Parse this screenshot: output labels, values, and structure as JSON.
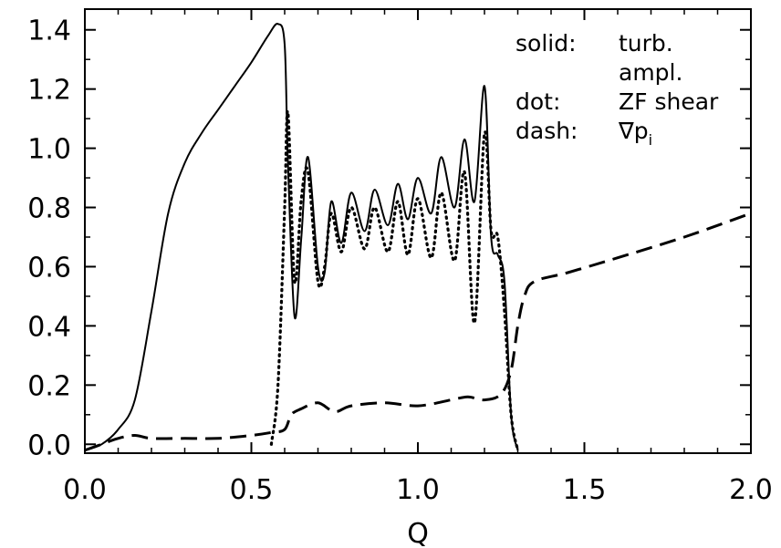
{
  "chart_data": {
    "type": "line",
    "xlabel": "Q",
    "ylabel": "",
    "xlim": [
      0.0,
      2.0
    ],
    "ylim": [
      -0.03,
      1.47
    ],
    "x_ticks": [
      "0.0",
      "0.5",
      "1.0",
      "1.5",
      "2.0"
    ],
    "y_ticks": [
      "0.0",
      "0.2",
      "0.4",
      "0.6",
      "0.8",
      "1.0",
      "1.2",
      "1.4"
    ],
    "legend": {
      "placement": "top-right",
      "entries": [
        {
          "key": "solid:",
          "text": "turb."
        },
        {
          "key": "",
          "text": "ampl."
        },
        {
          "key": "dot:",
          "text": "ZF shear"
        },
        {
          "key": "dash:",
          "text": "∇p",
          "subscript": "i"
        }
      ]
    },
    "series": [
      {
        "style": "solid",
        "x": [
          0.0,
          0.05,
          0.1,
          0.15,
          0.2,
          0.25,
          0.3,
          0.35,
          0.4,
          0.45,
          0.5,
          0.55,
          0.58,
          0.6,
          0.61,
          0.63,
          0.65,
          0.67,
          0.7,
          0.72,
          0.74,
          0.77,
          0.8,
          0.84,
          0.87,
          0.91,
          0.94,
          0.97,
          1.0,
          1.04,
          1.07,
          1.11,
          1.14,
          1.17,
          1.2,
          1.22,
          1.24,
          1.26,
          1.28,
          1.3
        ],
        "y": [
          -0.02,
          0.0,
          0.05,
          0.15,
          0.45,
          0.78,
          0.95,
          1.05,
          1.13,
          1.21,
          1.29,
          1.38,
          1.42,
          1.35,
          0.95,
          0.43,
          0.7,
          0.97,
          0.6,
          0.58,
          0.82,
          0.68,
          0.85,
          0.72,
          0.86,
          0.74,
          0.88,
          0.76,
          0.9,
          0.78,
          0.97,
          0.8,
          1.03,
          0.82,
          1.21,
          0.7,
          0.64,
          0.55,
          0.1,
          -0.02
        ]
      },
      {
        "style": "dot",
        "x": [
          0.56,
          0.58,
          0.6,
          0.61,
          0.63,
          0.65,
          0.67,
          0.7,
          0.72,
          0.74,
          0.77,
          0.8,
          0.84,
          0.87,
          0.91,
          0.94,
          0.97,
          1.0,
          1.04,
          1.07,
          1.11,
          1.14,
          1.17,
          1.2,
          1.22,
          1.24,
          1.26,
          1.28,
          1.3
        ],
        "y": [
          0.0,
          0.2,
          0.8,
          1.12,
          0.55,
          0.83,
          0.92,
          0.55,
          0.6,
          0.78,
          0.65,
          0.8,
          0.66,
          0.8,
          0.65,
          0.82,
          0.64,
          0.83,
          0.63,
          0.85,
          0.62,
          0.92,
          0.41,
          1.05,
          0.72,
          0.7,
          0.45,
          0.1,
          -0.02
        ]
      },
      {
        "style": "dash",
        "x": [
          0.0,
          0.05,
          0.1,
          0.15,
          0.2,
          0.3,
          0.4,
          0.5,
          0.56,
          0.6,
          0.62,
          0.65,
          0.7,
          0.75,
          0.8,
          0.9,
          1.0,
          1.1,
          1.15,
          1.2,
          1.25,
          1.28,
          1.3,
          1.32,
          1.35,
          1.45,
          1.6,
          1.8,
          2.0
        ],
        "y": [
          -0.02,
          0.0,
          0.02,
          0.03,
          0.02,
          0.02,
          0.02,
          0.03,
          0.04,
          0.05,
          0.1,
          0.12,
          0.14,
          0.11,
          0.13,
          0.14,
          0.13,
          0.15,
          0.16,
          0.15,
          0.17,
          0.25,
          0.4,
          0.5,
          0.55,
          0.58,
          0.63,
          0.7,
          0.78
        ]
      }
    ]
  }
}
